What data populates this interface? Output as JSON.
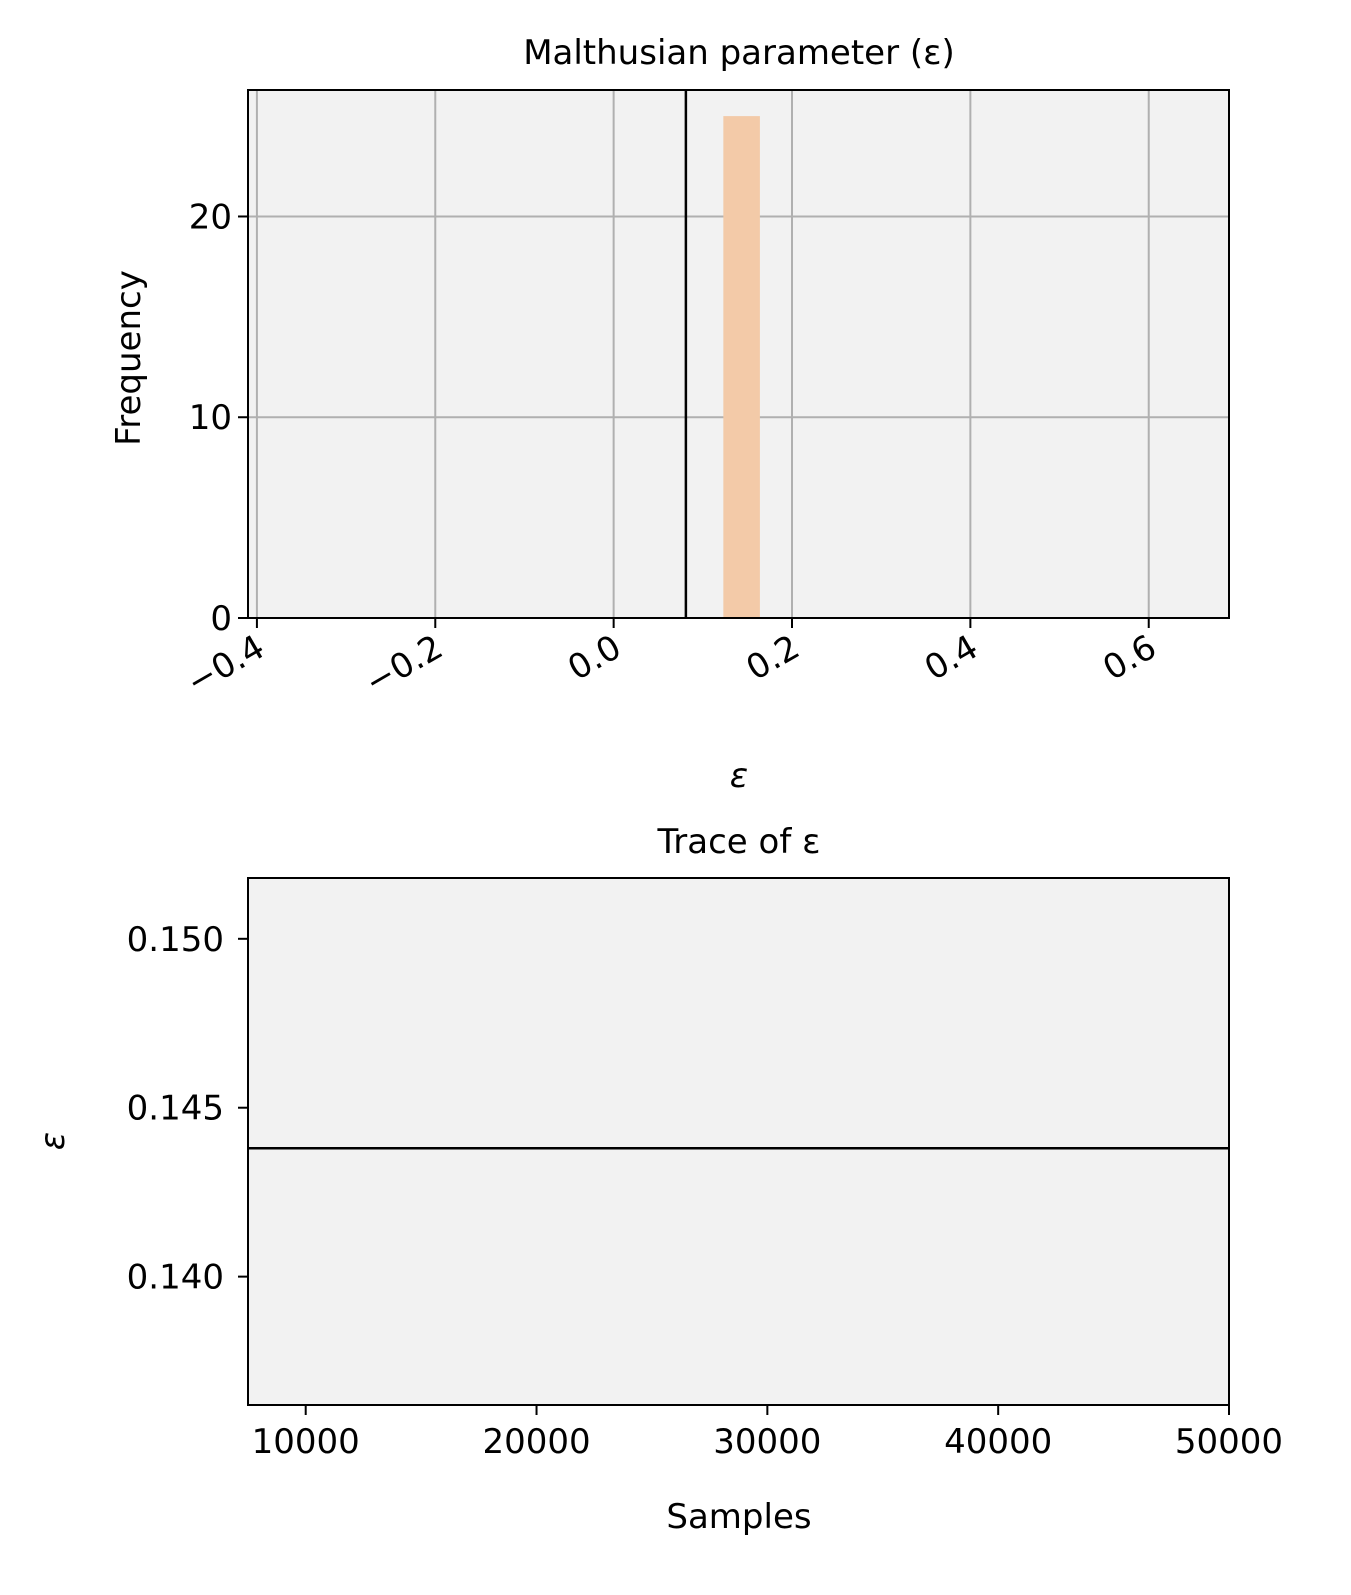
{
  "chart_data": [
    {
      "type": "bar",
      "title": "Malthusian parameter (ε)",
      "xlabel": "ε",
      "ylabel": "Frequency",
      "xlim": [
        -0.41,
        0.69
      ],
      "ylim": [
        0,
        26.3
      ],
      "xticks": [
        -0.4,
        -0.2,
        0.0,
        0.2,
        0.4,
        0.6
      ],
      "xtick_labels": [
        "−0.4",
        "−0.2",
        "0.0",
        "0.2",
        "0.4",
        "0.6"
      ],
      "yticks": [
        0,
        10,
        20
      ],
      "ytick_labels": [
        "0",
        "10",
        "20"
      ],
      "grid": true,
      "background": "#f2f2f2",
      "bars": [
        {
          "x0": 0.123,
          "x1": 0.164,
          "value": 25,
          "color": "#f3caa8"
        }
      ],
      "vline": {
        "x": 0.081,
        "color": "#000000"
      }
    },
    {
      "type": "line",
      "title": "Trace of ε",
      "xlabel": "Samples",
      "ylabel": "ε",
      "xlim": [
        7500,
        50000
      ],
      "ylim": [
        0.1362,
        0.1518
      ],
      "xticks": [
        10000,
        20000,
        30000,
        40000,
        50000
      ],
      "xtick_labels": [
        "10000",
        "20000",
        "30000",
        "40000",
        "50000"
      ],
      "yticks": [
        0.14,
        0.145,
        0.15
      ],
      "ytick_labels": [
        "0.140",
        "0.145",
        "0.150"
      ],
      "grid": false,
      "background": "#f2f2f2",
      "series": [
        {
          "x": [
            7500,
            50000
          ],
          "values": [
            0.1438,
            0.1438
          ],
          "color": "#000000"
        }
      ]
    }
  ]
}
